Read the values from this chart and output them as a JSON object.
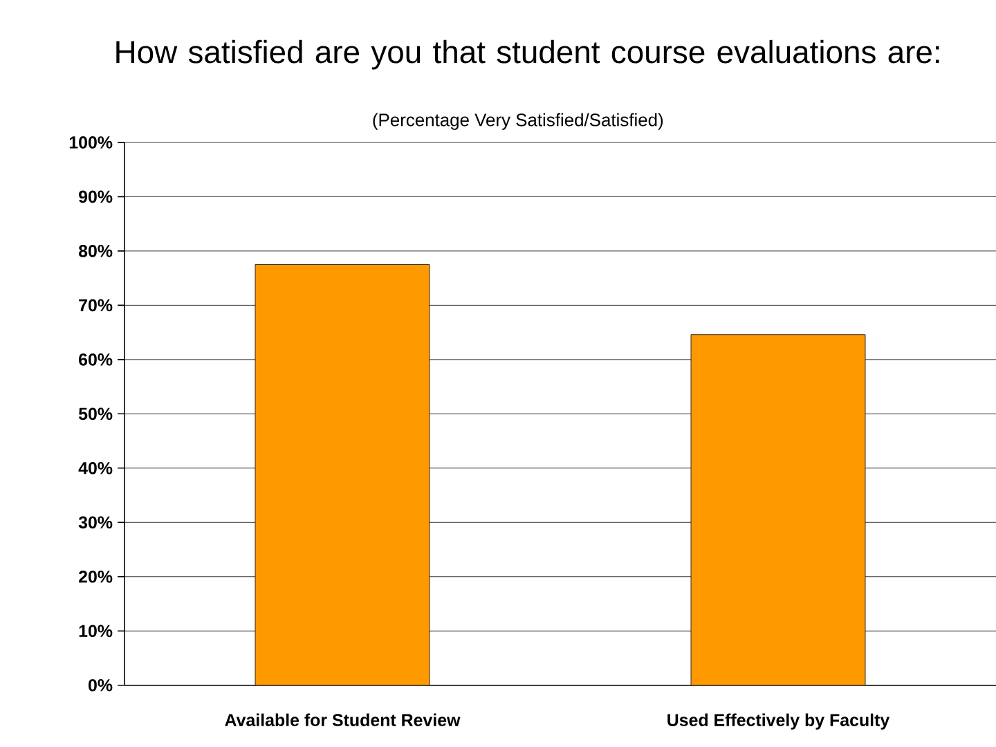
{
  "chart_data": {
    "type": "bar",
    "title": "How satisfied are you that student course evaluations are:",
    "subtitle": "(Percentage Very Satisfied/Satisfied)",
    "categories": [
      "Available for Student Review",
      "Used Effectively by Faculty"
    ],
    "values": [
      77.5,
      64.6
    ],
    "color": "#ff9900",
    "ylim": [
      0,
      100
    ],
    "yticks": [
      {
        "value": 0,
        "label": "0%"
      },
      {
        "value": 10,
        "label": "10%"
      },
      {
        "value": 20,
        "label": "20%"
      },
      {
        "value": 30,
        "label": "30%"
      },
      {
        "value": 40,
        "label": "40%"
      },
      {
        "value": 50,
        "label": "50%"
      },
      {
        "value": 60,
        "label": "60%"
      },
      {
        "value": 70,
        "label": "70%"
      },
      {
        "value": 80,
        "label": "80%"
      },
      {
        "value": 90,
        "label": "90%"
      },
      {
        "value": 100,
        "label": "100%"
      }
    ],
    "grid": "y"
  }
}
